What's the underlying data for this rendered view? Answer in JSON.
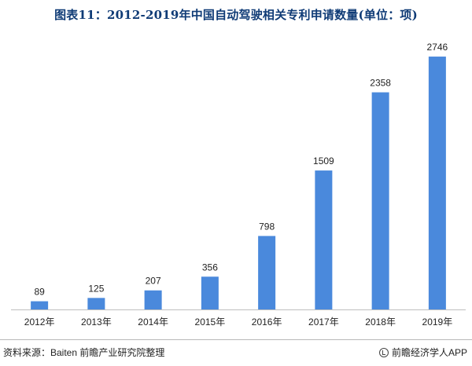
{
  "title": "图表11：2012-2019年中国自动驾驶相关专利申请数量(单位：项)",
  "source": "资料来源：Baiten 前瞻产业研究院整理",
  "brand": "前瞻经济学人APP",
  "colors": {
    "bar": "#4a89dc",
    "axis": "#bfbfbf",
    "title": "#0f3b76"
  },
  "chart_data": {
    "type": "bar",
    "title": "图表11：2012-2019年中国自动驾驶相关专利申请数量(单位：项)",
    "unit": "项",
    "xlabel": "",
    "ylabel": "",
    "ylim": [
      0,
      2900
    ],
    "grid": false,
    "categories": [
      "2012年",
      "2013年",
      "2014年",
      "2015年",
      "2016年",
      "2017年",
      "2018年",
      "2019年"
    ],
    "values": [
      89,
      125,
      207,
      356,
      798,
      1509,
      2358,
      2746
    ],
    "data_labels": [
      "89",
      "125",
      "207",
      "356",
      "798",
      "1509",
      "2358",
      "2746"
    ]
  }
}
